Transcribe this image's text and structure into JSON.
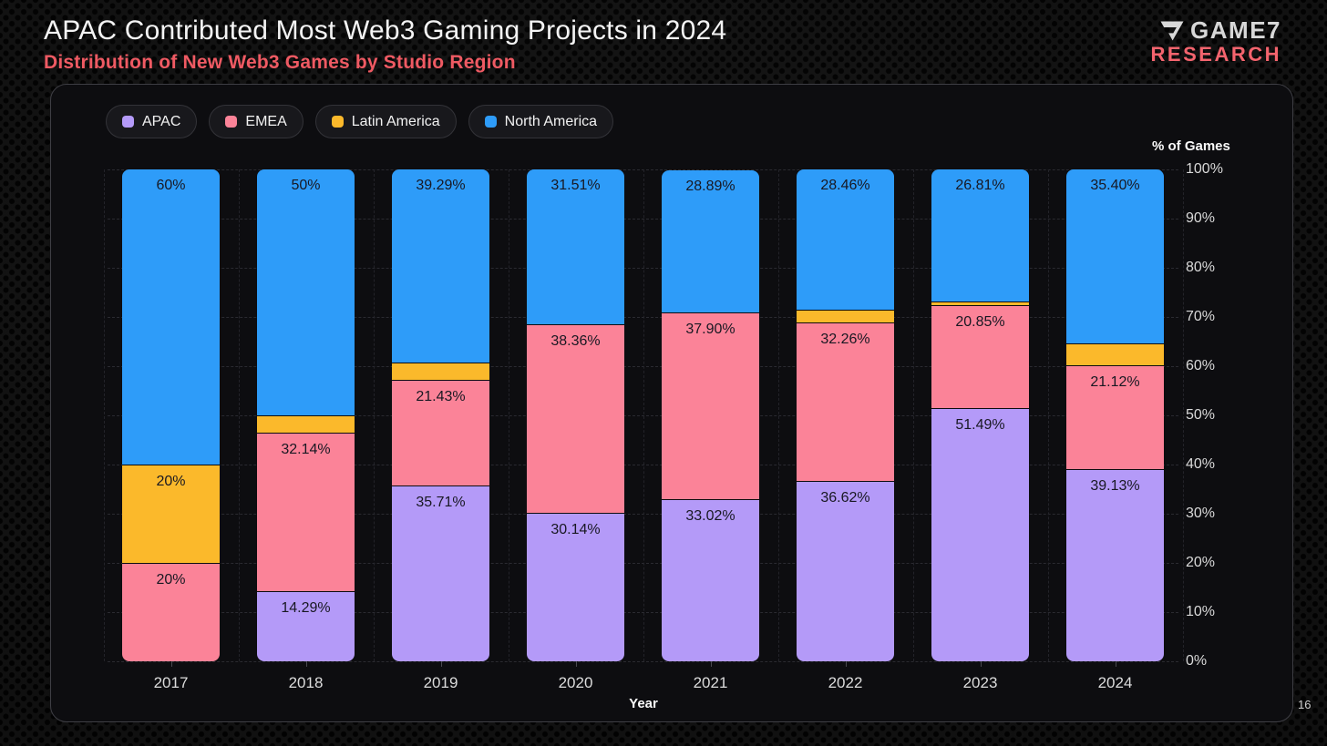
{
  "header": {
    "title": "APAC Contributed Most Web3 Gaming Projects in 2024",
    "subtitle": "Distribution of New Web3 Games by Studio Region",
    "logo": {
      "brand": "GAME7",
      "sub": "RESEARCH"
    },
    "page_number": "16"
  },
  "colors": {
    "apac": "#b49af8",
    "emea": "#fb8398",
    "latam": "#fbb92b",
    "na": "#2e9cf9",
    "subtitle_accent": "#ef5a63"
  },
  "chart_data": {
    "type": "bar",
    "stacked": true,
    "title": "Distribution of New Web3 Games by Studio Region",
    "xlabel": "Year",
    "ylabel": "% of Games",
    "ylim": [
      0,
      100
    ],
    "grid": true,
    "legend_position": "top-left",
    "categories": [
      "2017",
      "2018",
      "2019",
      "2020",
      "2021",
      "2022",
      "2023",
      "2024"
    ],
    "series": [
      {
        "name": "APAC",
        "color": "#b49af8",
        "values": [
          0,
          14.29,
          35.71,
          30.14,
          33.02,
          36.62,
          51.49,
          39.13
        ],
        "labels": [
          "",
          "14.29%",
          "35.71%",
          "30.14%",
          "33.02%",
          "36.62%",
          "51.49%",
          "39.13%"
        ]
      },
      {
        "name": "EMEA",
        "color": "#fb8398",
        "values": [
          20,
          32.14,
          21.43,
          38.36,
          37.9,
          32.26,
          20.85,
          21.12
        ],
        "labels": [
          "20%",
          "32.14%",
          "21.43%",
          "38.36%",
          "37.90%",
          "32.26%",
          "20.85%",
          "21.12%"
        ]
      },
      {
        "name": "Latin America",
        "color": "#fbb92b",
        "values": [
          20,
          3.57,
          3.57,
          0,
          0,
          2.66,
          0.85,
          4.35
        ],
        "labels": [
          "20%",
          "",
          "",
          "",
          "",
          "",
          "",
          ""
        ]
      },
      {
        "name": "North America",
        "color": "#2e9cf9",
        "values": [
          60,
          50,
          39.29,
          31.51,
          28.89,
          28.46,
          26.81,
          35.4
        ],
        "labels": [
          "60%",
          "50%",
          "39.29%",
          "31.51%",
          "28.89%",
          "28.46%",
          "26.81%",
          "35.40%"
        ]
      }
    ],
    "yticks": [
      {
        "value": 100,
        "label": "100%"
      },
      {
        "value": 90,
        "label": "90%"
      },
      {
        "value": 80,
        "label": "80%"
      },
      {
        "value": 70,
        "label": "70%"
      },
      {
        "value": 60,
        "label": "60%"
      },
      {
        "value": 50,
        "label": "50%"
      },
      {
        "value": 40,
        "label": "40%"
      },
      {
        "value": 30,
        "label": "30%"
      },
      {
        "value": 20,
        "label": "20%"
      },
      {
        "value": 10,
        "label": "10%"
      },
      {
        "value": 0,
        "label": "0%"
      }
    ]
  }
}
